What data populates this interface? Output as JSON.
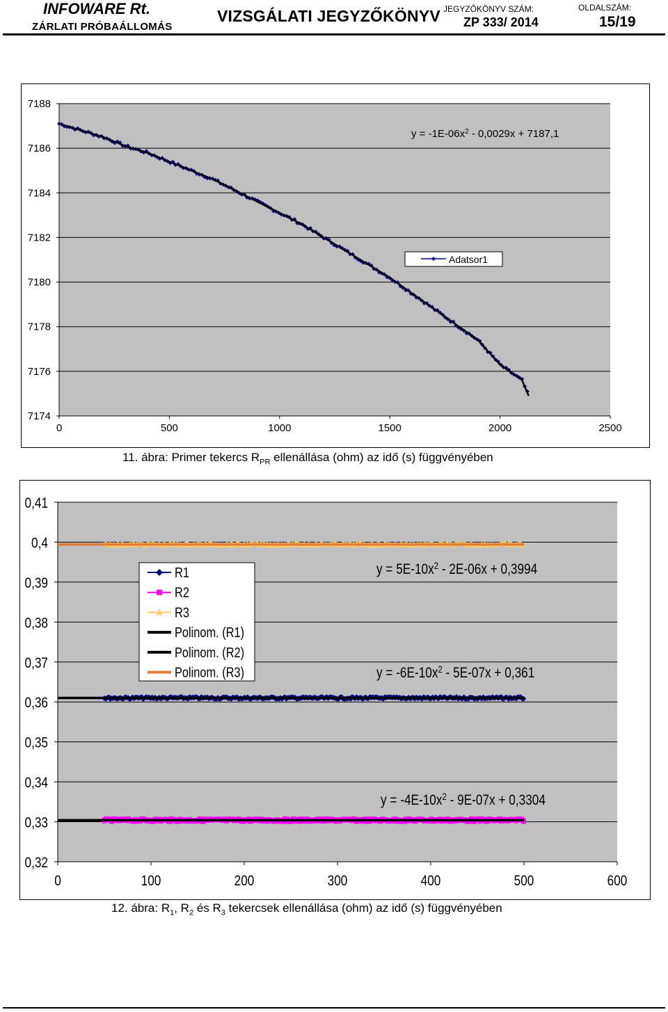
{
  "header": {
    "company": "INFOWARE Rt.",
    "subtitle": "ZÁRLATI PRÓBAÁLLOMÁS",
    "doc_title": "VIZSGÁLATI JEGYZŐKÖNYV",
    "doc_number_label": "JEGYZŐKÖNYV SZÁM:",
    "doc_number": "ZP 333/ 2014",
    "page_label": "OLDALSZÁM:",
    "page_number": "15/19"
  },
  "colors": {
    "plot_bg": "#c0c0c0",
    "series_dark_blue": "#000080",
    "series_magenta": "#ff00ff",
    "series_yellow": "#ffcc66",
    "trend_black": "#000000",
    "trend_orange": "#e07b39"
  },
  "captions": {
    "fig11_prefix": "11. ábra: Primer tekercs R",
    "fig11_sub": "PR",
    "fig11_suffix": " ellenállása (ohm) az idő (s) függvényében",
    "fig12_prefix": "12. ábra: R",
    "fig12_sub1": "1",
    "fig12_mid1": ", R",
    "fig12_sub2": "2",
    "fig12_mid2": " és R",
    "fig12_sub3": "3",
    "fig12_suffix": " tekercsek ellenállása (ohm) az idő (s) függvényében"
  },
  "chart_data": [
    {
      "type": "scatter",
      "xlim": [
        0,
        2500
      ],
      "ylim": [
        7174,
        7188
      ],
      "x_ticks": [
        "0",
        "500",
        "1000",
        "1500",
        "2000",
        "2500"
      ],
      "y_ticks": [
        "7174",
        "7176",
        "7178",
        "7180",
        "7182",
        "7184",
        "7186",
        "7188"
      ],
      "grid": "horizontal",
      "legend_position": "right-middle",
      "series": [
        {
          "name": "Adatsor1",
          "x": [
            0,
            100,
            200,
            300,
            400,
            500,
            600,
            700,
            800,
            900,
            1000,
            1100,
            1200,
            1300,
            1400,
            1500,
            1600,
            1700,
            1800,
            1900,
            2000,
            2100,
            2130
          ],
          "y": [
            7187.1,
            7186.8,
            7186.5,
            7186.1,
            7185.8,
            7185.4,
            7185.0,
            7184.6,
            7184.1,
            7183.6,
            7183.1,
            7182.6,
            7182.0,
            7181.4,
            7180.8,
            7180.2,
            7179.5,
            7178.8,
            7178.1,
            7177.4,
            7176.3,
            7175.6,
            7174.9
          ]
        }
      ],
      "trendline": {
        "type": "polynomial",
        "equation": "y = -1E-06x2 - 0,0029x + 7187,1",
        "eq_main": "y = -1E-06x",
        "eq_sup": "2",
        "eq_rest": " - 0,0029x + 7187,1",
        "x_range": [
          0,
          2130
        ]
      }
    },
    {
      "type": "line",
      "xlim": [
        0,
        600
      ],
      "ylim": [
        0.32,
        0.41
      ],
      "x_ticks": [
        "0",
        "100",
        "200",
        "300",
        "400",
        "500",
        "600"
      ],
      "y_ticks": [
        "0,32",
        "0,33",
        "0,34",
        "0,35",
        "0,36",
        "0,37",
        "0,38",
        "0,39",
        "0,4",
        "0,41"
      ],
      "grid": "horizontal",
      "legend_position": "top-left",
      "series": [
        {
          "name": "R1",
          "x_range": [
            50,
            500
          ],
          "level": 0.361
        },
        {
          "name": "R2",
          "x_range": [
            50,
            500
          ],
          "level": 0.3304
        },
        {
          "name": "R3",
          "x_range": [
            50,
            500
          ],
          "level": 0.3994
        }
      ],
      "trendlines": [
        {
          "name": "Polinom. (R1)",
          "x_range": [
            0,
            500
          ],
          "equation": "y = -6E-10x2 - 5E-07x + 0,361",
          "eq_main": "y = -6E-10x",
          "eq_sup": "2",
          "eq_rest": " - 5E-07x + 0,361"
        },
        {
          "name": "Polinom. (R2)",
          "x_range": [
            0,
            500
          ],
          "equation": "y = -4E-10x2 - 9E-07x + 0,3304",
          "eq_main": "y = -4E-10x",
          "eq_sup": "2",
          "eq_rest": " - 9E-07x + 0,3304"
        },
        {
          "name": "Polinom. (R3)",
          "x_range": [
            0,
            500
          ],
          "equation": "y = 5E-10x2 - 2E-06x + 0,3994",
          "eq_main": "y = 5E-10x",
          "eq_sup": "2",
          "eq_rest": " - 2E-06x + 0,3994"
        }
      ]
    }
  ]
}
